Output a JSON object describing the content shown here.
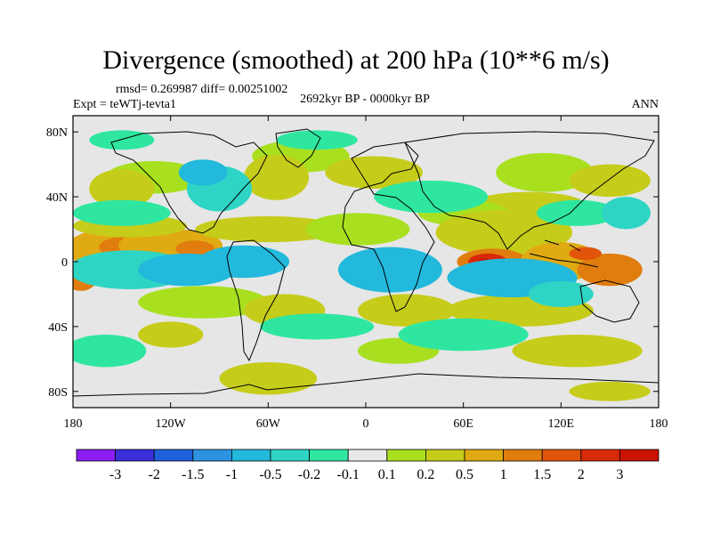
{
  "header": {
    "title": "Divergence (smoothed) at 200 hPa (10**6 m/s)",
    "stats": "rmsd= 0.269987 diff= 0.00251002",
    "period": "2692kyr BP - 0000kyr BP",
    "expt": "Expt = teWTj-tevta1",
    "season": "ANN"
  },
  "axes": {
    "lat_labels": [
      "80N",
      "40N",
      "0",
      "40S",
      "80S"
    ],
    "lat_values": [
      80,
      40,
      0,
      -40,
      -80
    ],
    "lon_labels": [
      "180",
      "120W",
      "60W",
      "0",
      "60E",
      "120E",
      "180"
    ],
    "lon_values": [
      -180,
      -120,
      -60,
      0,
      60,
      120,
      180
    ],
    "lat_range": [
      -90,
      90
    ],
    "lon_range": [
      -180,
      180
    ]
  },
  "colorbar": {
    "labels": [
      "-3",
      "-2",
      "-1.5",
      "-1",
      "-0.5",
      "-0.2",
      "-0.1",
      "0.1",
      "0.2",
      "0.5",
      "1",
      "1.5",
      "2",
      "3"
    ],
    "colors": [
      "#8a1ef2",
      "#3b2fd9",
      "#1f5fdc",
      "#2d93e0",
      "#22b9dc",
      "#2ed5c4",
      "#2fe6a0",
      "#e8e8e8",
      "#a8e020",
      "#c6cc1a",
      "#e0aa12",
      "#e07d0e",
      "#e0550a",
      "#d82a08",
      "#cc1200"
    ]
  },
  "map": {
    "ocean_color": "#e6e6e6",
    "blobs": [
      {
        "lon": -158,
        "lat": 8,
        "rx": 26,
        "ry": 12,
        "level": 10
      },
      {
        "lon": -150,
        "lat": 9,
        "rx": 14,
        "ry": 6,
        "level": 11
      },
      {
        "lon": -120,
        "lat": 10,
        "rx": 32,
        "ry": 10,
        "level": 10
      },
      {
        "lon": -105,
        "lat": 8,
        "rx": 12,
        "ry": 5,
        "level": 11
      },
      {
        "lon": -145,
        "lat": 22,
        "rx": 35,
        "ry": 7,
        "level": 9
      },
      {
        "lon": -60,
        "lat": 20,
        "rx": 45,
        "ry": 8,
        "level": 9
      },
      {
        "lon": -5,
        "lat": 20,
        "rx": 32,
        "ry": 10,
        "level": 8
      },
      {
        "lon": -130,
        "lat": 52,
        "rx": 30,
        "ry": 10,
        "level": 8
      },
      {
        "lon": -150,
        "lat": 45,
        "rx": 20,
        "ry": 12,
        "level": 9
      },
      {
        "lon": -40,
        "lat": 65,
        "rx": 30,
        "ry": 10,
        "level": 8
      },
      {
        "lon": -55,
        "lat": 52,
        "rx": 20,
        "ry": 14,
        "level": 9
      },
      {
        "lon": 5,
        "lat": 55,
        "rx": 30,
        "ry": 10,
        "level": 9
      },
      {
        "lon": 110,
        "lat": 55,
        "rx": 30,
        "ry": 12,
        "level": 8
      },
      {
        "lon": 150,
        "lat": 50,
        "rx": 25,
        "ry": 10,
        "level": 9
      },
      {
        "lon": 100,
        "lat": 35,
        "rx": 35,
        "ry": 8,
        "level": 9
      },
      {
        "lon": 60,
        "lat": 30,
        "rx": 28,
        "ry": 8,
        "level": 8
      },
      {
        "lon": 85,
        "lat": 18,
        "rx": 42,
        "ry": 14,
        "level": 9
      },
      {
        "lon": 78,
        "lat": 0,
        "rx": 22,
        "ry": 8,
        "level": 11
      },
      {
        "lon": 75,
        "lat": 0,
        "rx": 12,
        "ry": 5,
        "level": 13
      },
      {
        "lon": 73,
        "lat": 0,
        "rx": 4,
        "ry": 2,
        "level": 14
      },
      {
        "lon": 120,
        "lat": 0,
        "rx": 25,
        "ry": 12,
        "level": 10
      },
      {
        "lon": 150,
        "lat": -5,
        "rx": 20,
        "ry": 10,
        "level": 11
      },
      {
        "lon": 135,
        "lat": 5,
        "rx": 10,
        "ry": 4,
        "level": 12
      },
      {
        "lon": -175,
        "lat": -10,
        "rx": 10,
        "ry": 8,
        "level": 11
      },
      {
        "lon": -100,
        "lat": -25,
        "rx": 40,
        "ry": 10,
        "level": 8
      },
      {
        "lon": -50,
        "lat": -30,
        "rx": 25,
        "ry": 10,
        "level": 9
      },
      {
        "lon": 25,
        "lat": -30,
        "rx": 30,
        "ry": 10,
        "level": 9
      },
      {
        "lon": 95,
        "lat": -30,
        "rx": 45,
        "ry": 10,
        "level": 9
      },
      {
        "lon": -120,
        "lat": -45,
        "rx": 20,
        "ry": 8,
        "level": 9
      },
      {
        "lon": 20,
        "lat": -55,
        "rx": 25,
        "ry": 8,
        "level": 8
      },
      {
        "lon": 130,
        "lat": -55,
        "rx": 40,
        "ry": 10,
        "level": 9
      },
      {
        "lon": -60,
        "lat": -72,
        "rx": 30,
        "ry": 10,
        "level": 9
      },
      {
        "lon": 150,
        "lat": -80,
        "rx": 25,
        "ry": 6,
        "level": 9
      },
      {
        "lon": -145,
        "lat": -5,
        "rx": 38,
        "ry": 12,
        "level": 5
      },
      {
        "lon": -110,
        "lat": -5,
        "rx": 30,
        "ry": 10,
        "level": 4
      },
      {
        "lon": -75,
        "lat": 0,
        "rx": 28,
        "ry": 10,
        "level": 4
      },
      {
        "lon": 15,
        "lat": -5,
        "rx": 32,
        "ry": 14,
        "level": 4
      },
      {
        "lon": 90,
        "lat": -10,
        "rx": 40,
        "ry": 12,
        "level": 4
      },
      {
        "lon": 120,
        "lat": -20,
        "rx": 20,
        "ry": 8,
        "level": 5
      },
      {
        "lon": -150,
        "lat": 30,
        "rx": 30,
        "ry": 8,
        "level": 6
      },
      {
        "lon": -90,
        "lat": 45,
        "rx": 20,
        "ry": 14,
        "level": 5
      },
      {
        "lon": -100,
        "lat": 55,
        "rx": 15,
        "ry": 8,
        "level": 4
      },
      {
        "lon": 40,
        "lat": 40,
        "rx": 35,
        "ry": 10,
        "level": 6
      },
      {
        "lon": 130,
        "lat": 30,
        "rx": 25,
        "ry": 8,
        "level": 6
      },
      {
        "lon": 160,
        "lat": 30,
        "rx": 15,
        "ry": 10,
        "level": 5
      },
      {
        "lon": -30,
        "lat": -40,
        "rx": 35,
        "ry": 8,
        "level": 6
      },
      {
        "lon": 60,
        "lat": -45,
        "rx": 40,
        "ry": 10,
        "level": 6
      },
      {
        "lon": -160,
        "lat": -55,
        "rx": 25,
        "ry": 10,
        "level": 6
      },
      {
        "lon": -30,
        "lat": 75,
        "rx": 25,
        "ry": 6,
        "level": 6
      },
      {
        "lon": -150,
        "lat": 75,
        "rx": 20,
        "ry": 6,
        "level": 6
      }
    ]
  }
}
